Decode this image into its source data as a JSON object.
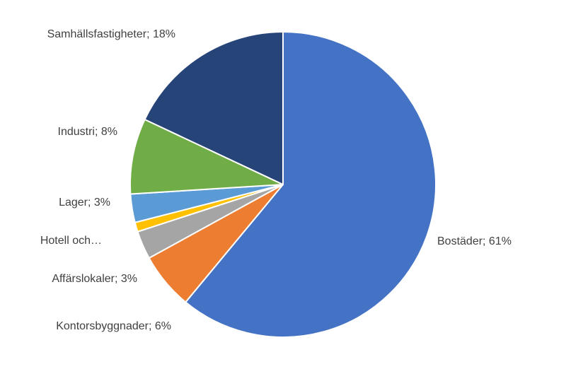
{
  "chart_data": {
    "type": "pie",
    "categories": [
      "Bostäder",
      "Kontorsbyggnader",
      "Affärslokaler",
      "Hotell och…",
      "Lager",
      "Industri",
      "Samhällsfastigheter"
    ],
    "values": [
      61,
      6,
      3,
      1,
      3,
      8,
      18
    ],
    "labels": [
      "Bostäder; 61%",
      "Kontorsbyggnader; 6%",
      "Affärslokaler; 3%",
      "Hotell och…",
      "Lager; 3%",
      "Industri; 8%",
      "Samhällsfastigheter; 18%"
    ],
    "colors": [
      "#4472C4",
      "#ED7D31",
      "#A5A5A5",
      "#FFC000",
      "#5B9BD5",
      "#70AD47",
      "#264478"
    ],
    "start_angle_deg": 0,
    "direction": "clockwise",
    "title": "",
    "legend": "none"
  }
}
